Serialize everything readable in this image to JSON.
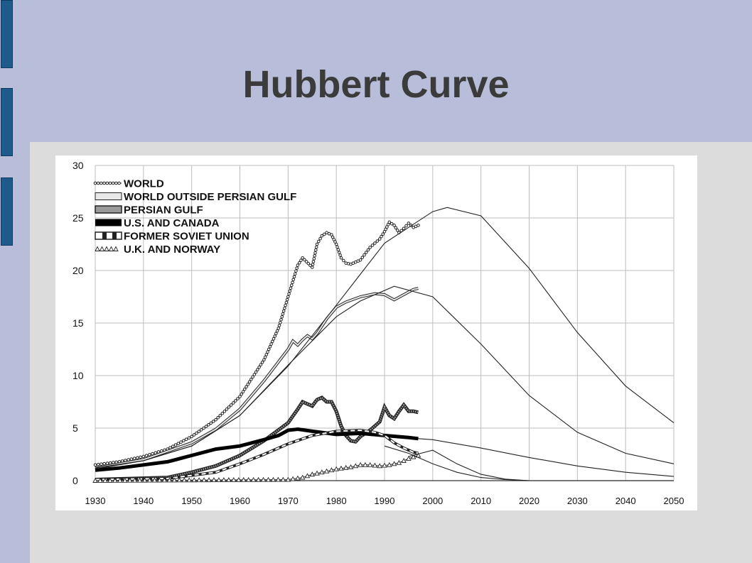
{
  "slide": {
    "title": "Hubbert Curve"
  },
  "chart_data": {
    "type": "line",
    "title": "",
    "xlabel": "",
    "ylabel": "",
    "xlim": [
      1930,
      2052
    ],
    "ylim": [
      0,
      30
    ],
    "grid": true,
    "legend_position": "top-left",
    "x_ticks": [
      "1930",
      "1940",
      "1950",
      "1960",
      "1970",
      "1980",
      "1990",
      "2000",
      "2010",
      "2020",
      "2030",
      "2040",
      "2050"
    ],
    "y_ticks": [
      "0",
      "5",
      "10",
      "15",
      "20",
      "25",
      "30"
    ],
    "series": [
      {
        "name": "WORLD",
        "style": "dotted",
        "color": "#222222",
        "x": [
          1930,
          1935,
          1940,
          1945,
          1950,
          1955,
          1960,
          1965,
          1968,
          1970,
          1972,
          1973,
          1975,
          1976,
          1977,
          1978,
          1979,
          1980,
          1981,
          1982,
          1983,
          1985,
          1987,
          1989,
          1990,
          1991,
          1992,
          1993,
          1994,
          1995,
          1996,
          1997
        ],
        "y": [
          1.5,
          1.8,
          2.3,
          3.0,
          4.2,
          5.8,
          8.0,
          11.5,
          14.5,
          17.5,
          20.5,
          21.2,
          20.3,
          22.5,
          23.3,
          23.6,
          23.4,
          22.5,
          21.2,
          20.7,
          20.6,
          21.0,
          22.2,
          23.0,
          23.7,
          24.6,
          24.3,
          23.6,
          24.0,
          24.5,
          24.1,
          24.3
        ]
      },
      {
        "name": "WORLD OUTSIDE PERSIAN GULF",
        "style": "double",
        "color": "#222222",
        "x": [
          1930,
          1940,
          1950,
          1955,
          1960,
          1965,
          1970,
          1971,
          1972,
          1973,
          1974,
          1975,
          1976,
          1978,
          1980,
          1982,
          1985,
          1988,
          1990,
          1992,
          1994,
          1996,
          1997
        ],
        "y": [
          1.2,
          2.0,
          3.6,
          4.9,
          6.8,
          9.5,
          12.5,
          13.3,
          12.9,
          13.4,
          13.8,
          13.5,
          14.0,
          15.4,
          16.5,
          17.0,
          17.5,
          17.8,
          17.7,
          17.2,
          17.7,
          18.2,
          18.3
        ]
      },
      {
        "name": "PERSIAN GULF",
        "style": "hatched",
        "color": "#555555",
        "x": [
          1930,
          1945,
          1950,
          1955,
          1960,
          1965,
          1970,
          1972,
          1973,
          1974,
          1975,
          1976,
          1977,
          1978,
          1979,
          1980,
          1981,
          1982,
          1983,
          1984,
          1985,
          1987,
          1989,
          1990,
          1991,
          1992,
          1993,
          1994,
          1995,
          1996,
          1997
        ],
        "y": [
          0.1,
          0.3,
          0.8,
          1.4,
          2.4,
          3.8,
          5.5,
          6.8,
          7.5,
          7.3,
          7.1,
          7.7,
          7.9,
          7.5,
          7.5,
          6.6,
          5.2,
          4.3,
          3.8,
          3.7,
          4.2,
          4.8,
          5.6,
          7.0,
          6.2,
          5.9,
          6.6,
          7.2,
          6.6,
          6.6,
          6.5
        ]
      },
      {
        "name": "U.S. AND CANADA",
        "style": "thick",
        "color": "#000000",
        "x": [
          1930,
          1935,
          1940,
          1945,
          1950,
          1955,
          1960,
          1965,
          1968,
          1970,
          1972,
          1975,
          1980,
          1985,
          1990,
          1995,
          1997
        ],
        "y": [
          1.0,
          1.2,
          1.5,
          1.8,
          2.4,
          3.0,
          3.3,
          3.9,
          4.3,
          4.8,
          4.9,
          4.7,
          4.4,
          4.5,
          4.3,
          4.1,
          4.0
        ]
      },
      {
        "name": "FORMER SOVIET UNION",
        "style": "dashed-double",
        "color": "#222222",
        "x": [
          1930,
          1945,
          1950,
          1955,
          1960,
          1965,
          1970,
          1975,
          1980,
          1985,
          1988,
          1990,
          1992,
          1994,
          1996,
          1997
        ],
        "y": [
          0.1,
          0.2,
          0.5,
          0.8,
          1.6,
          2.5,
          3.5,
          4.3,
          4.7,
          4.8,
          4.6,
          4.3,
          3.6,
          3.1,
          2.7,
          2.6
        ]
      },
      {
        "name": "U.K. AND NORWAY",
        "style": "triangles",
        "color": "#222222",
        "x": [
          1930,
          1970,
          1973,
          1975,
          1978,
          1980,
          1983,
          1985,
          1987,
          1989,
          1991,
          1993,
          1995,
          1997
        ],
        "y": [
          0.0,
          0.1,
          0.3,
          0.6,
          0.9,
          1.1,
          1.3,
          1.5,
          1.5,
          1.4,
          1.5,
          1.7,
          2.1,
          2.4
        ]
      },
      {
        "name": "",
        "style": "model",
        "color": "#222222",
        "x": [
          1930,
          1940,
          1950,
          1960,
          1970,
          1980,
          1990,
          2000,
          2003,
          2010,
          2020,
          2030,
          2040,
          2050
        ],
        "y": [
          1.2,
          1.9,
          3.3,
          6.2,
          10.9,
          16.7,
          22.6,
          25.6,
          26.0,
          25.2,
          20.2,
          14.1,
          9.0,
          5.5
        ]
      },
      {
        "name": "",
        "style": "model",
        "color": "#222222",
        "x": [
          1930,
          1940,
          1950,
          1960,
          1970,
          1980,
          1985,
          1992,
          2000,
          2010,
          2020,
          2030,
          2040,
          2050
        ],
        "y": [
          1.2,
          1.9,
          3.3,
          6.2,
          11.0,
          15.6,
          17.1,
          18.5,
          17.5,
          13.0,
          8.1,
          4.6,
          2.6,
          1.6
        ]
      },
      {
        "name": "",
        "style": "model",
        "color": "#222222",
        "x": [
          1997,
          2000,
          2010,
          2020,
          2030,
          2040,
          2050
        ],
        "y": [
          4.0,
          3.9,
          3.1,
          2.2,
          1.4,
          0.8,
          0.4
        ]
      },
      {
        "name": "",
        "style": "model",
        "color": "#222222",
        "x": [
          1990,
          1995,
          2000,
          2005,
          2010,
          2015,
          2020,
          2030,
          2050
        ],
        "y": [
          3.3,
          2.6,
          1.6,
          0.8,
          0.3,
          0.1,
          0.0,
          0.0,
          0.0
        ]
      },
      {
        "name": "",
        "style": "model",
        "color": "#222222",
        "x": [
          1995,
          2000,
          2005,
          2010,
          2015,
          2020,
          2030,
          2050
        ],
        "y": [
          2.3,
          2.9,
          1.6,
          0.6,
          0.15,
          0.0,
          0.0,
          0.0
        ]
      }
    ]
  }
}
